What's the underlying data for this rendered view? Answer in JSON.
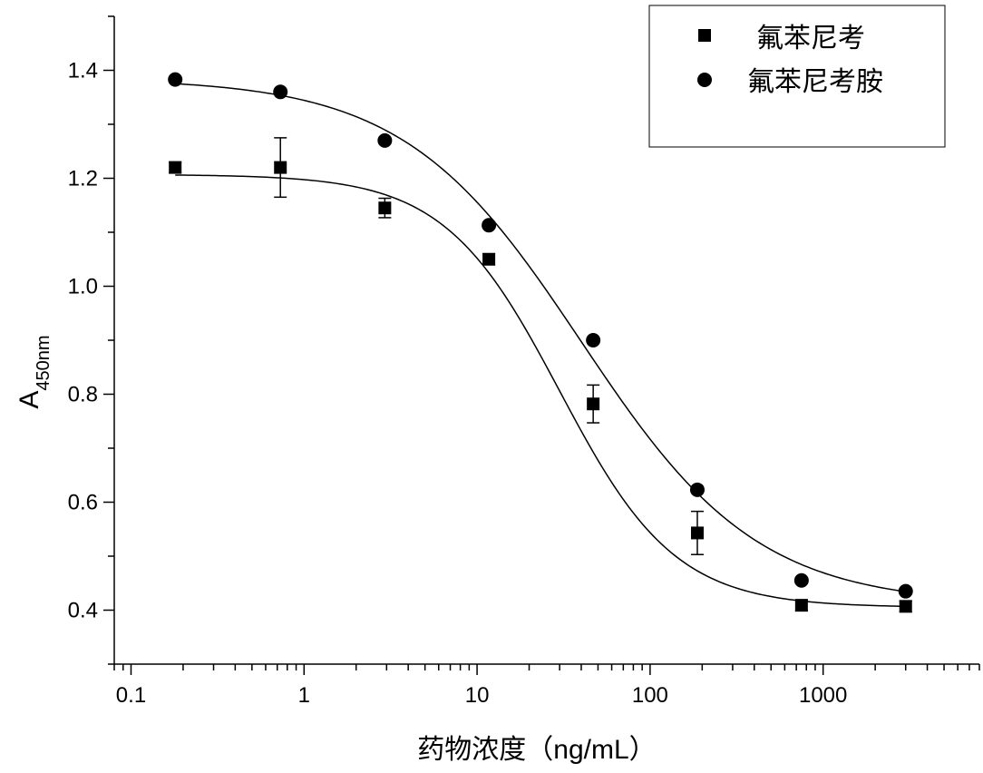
{
  "chart_data": {
    "type": "scatter",
    "title": "",
    "xlabel": "药物浓度（ng/mL）",
    "ylabel_main": "A",
    "ylabel_sub": "450nm",
    "xscale": "log",
    "xlim": [
      0.08,
      8000
    ],
    "ylim": [
      0.3,
      1.5
    ],
    "x_tick_values": [
      0.1,
      1,
      10,
      100,
      1000
    ],
    "x_tick_labels": [
      "0.1",
      "1",
      "10",
      "100",
      "1000"
    ],
    "y_tick_values": [
      0.4,
      0.6,
      0.8,
      1.0,
      1.2,
      1.4
    ],
    "y_tick_labels": [
      "0.4",
      "0.6",
      "0.8",
      "1.0",
      "1.2",
      "1.4"
    ],
    "legend_position": "top-right",
    "series": [
      {
        "name": "氟苯尼考",
        "marker": "square",
        "x": [
          0.18,
          0.73,
          2.93,
          11.7,
          46.9,
          187.5,
          750,
          3000
        ],
        "y": [
          1.22,
          1.22,
          1.145,
          1.05,
          0.782,
          0.543,
          0.409,
          0.407
        ],
        "error": [
          0.01,
          0.055,
          0.018,
          0.01,
          0.035,
          0.04,
          0.01,
          0.01
        ],
        "fit": {
          "model": "4PL",
          "top": 1.207,
          "bottom": 0.405,
          "ec50": 30,
          "hill": 1.3
        }
      },
      {
        "name": "氟苯尼考胺",
        "marker": "circle",
        "x": [
          0.18,
          0.73,
          2.93,
          11.7,
          46.9,
          187.5,
          750,
          3000
        ],
        "y": [
          1.383,
          1.36,
          1.27,
          1.113,
          0.9,
          0.623,
          0.455,
          0.435
        ],
        "error": [
          0.005,
          0.005,
          0.005,
          0.005,
          0.005,
          0.005,
          0.005,
          0.005
        ],
        "fit": {
          "model": "4PL",
          "top": 1.385,
          "bottom": 0.41,
          "ec50": 40,
          "hill": 0.85
        }
      }
    ]
  }
}
